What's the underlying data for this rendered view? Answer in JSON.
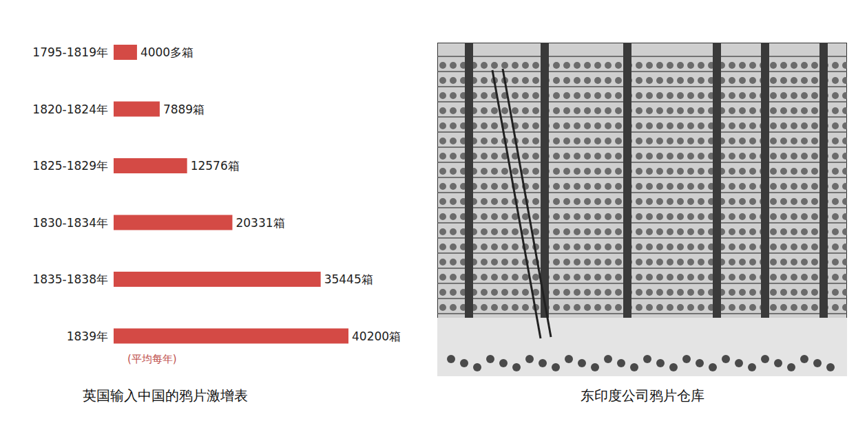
{
  "chart_data": {
    "type": "bar",
    "orientation": "horizontal",
    "title": "英国输入中国的鸦片激增表",
    "annotation": "(平均每年)",
    "categories": [
      "1795-1819年",
      "1820-1824年",
      "1825-1829年",
      "1830-1834年",
      "1835-1838年",
      "1839年"
    ],
    "values": [
      4000,
      7889,
      12576,
      20331,
      35445,
      40200
    ],
    "value_labels": [
      "4000多箱",
      "7889箱",
      "12576箱",
      "20331箱",
      "35445箱",
      "40200箱"
    ],
    "color": "#d44a45",
    "xlim": [
      0,
      40200
    ],
    "grid": false,
    "data_labels": true,
    "tick_labels": "y"
  },
  "image": {
    "caption": "东印度公司鸦片仓库"
  }
}
